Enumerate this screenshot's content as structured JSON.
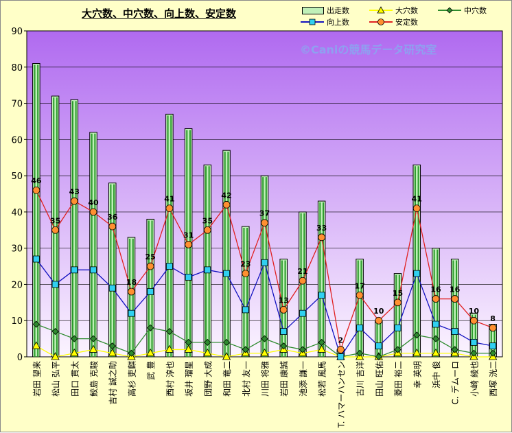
{
  "chart_data": {
    "type": "bar",
    "title": "大穴数、中穴数、向上数、安定数",
    "watermark": "©Caniの競馬データ研究室",
    "ylim": [
      0,
      90
    ],
    "yticks": [
      0,
      10,
      20,
      30,
      40,
      50,
      60,
      70,
      80,
      90
    ],
    "categories": [
      "岩田 望来",
      "松山 弘平",
      "田口 貫太",
      "鮫島 克駿",
      "吉村 誠之助",
      "高杉 吏麒",
      "武 豊",
      "西村 淳也",
      "坂井 瑠星",
      "団野 大成",
      "和田 竜二",
      "北村 友一",
      "川田 将雅",
      "岩田 康誠",
      "池添 謙一",
      "松若 風馬",
      "T. ハマーハンセン",
      "古川 吉洋",
      "田山 旺佑",
      "菱田 裕二",
      "幸 英明",
      "浜中 俊",
      "C. デムーロ",
      "小崎 綾也",
      "西塚 洸二"
    ],
    "series": [
      {
        "name": "出走数",
        "type": "bar",
        "color": "#C0F0B8",
        "values": [
          81,
          72,
          71,
          62,
          48,
          33,
          38,
          67,
          63,
          53,
          57,
          36,
          50,
          27,
          40,
          43,
          2,
          27,
          10,
          23,
          53,
          30,
          27,
          12,
          9
        ]
      },
      {
        "name": "大穴数",
        "type": "line",
        "color": "#FFFF00",
        "values": [
          3,
          0,
          1,
          2,
          1,
          0,
          1,
          2,
          2,
          1,
          0,
          1,
          1,
          2,
          1,
          2,
          0,
          0,
          0,
          1,
          1,
          1,
          1,
          0,
          0
        ]
      },
      {
        "name": "中穴数",
        "type": "line",
        "color": "#2E8B2E",
        "values": [
          9,
          7,
          5,
          5,
          3,
          1,
          8,
          7,
          4,
          4,
          4,
          2,
          5,
          3,
          2,
          4,
          0,
          1,
          0,
          2,
          6,
          5,
          2,
          1,
          1
        ]
      },
      {
        "name": "向上数",
        "type": "line",
        "color": "#1010C0",
        "values": [
          27,
          20,
          24,
          24,
          19,
          12,
          18,
          25,
          22,
          24,
          23,
          13,
          26,
          7,
          12,
          17,
          0,
          8,
          3,
          8,
          23,
          9,
          7,
          4,
          3
        ]
      },
      {
        "name": "安定数",
        "type": "line",
        "color": "#E02020",
        "values": [
          46,
          35,
          43,
          40,
          36,
          18,
          25,
          41,
          31,
          35,
          42,
          23,
          37,
          13,
          21,
          33,
          2,
          17,
          10,
          15,
          41,
          16,
          16,
          10,
          8
        ]
      }
    ],
    "data_labels": "安定数",
    "legend_position": "top-right",
    "grid": true
  }
}
